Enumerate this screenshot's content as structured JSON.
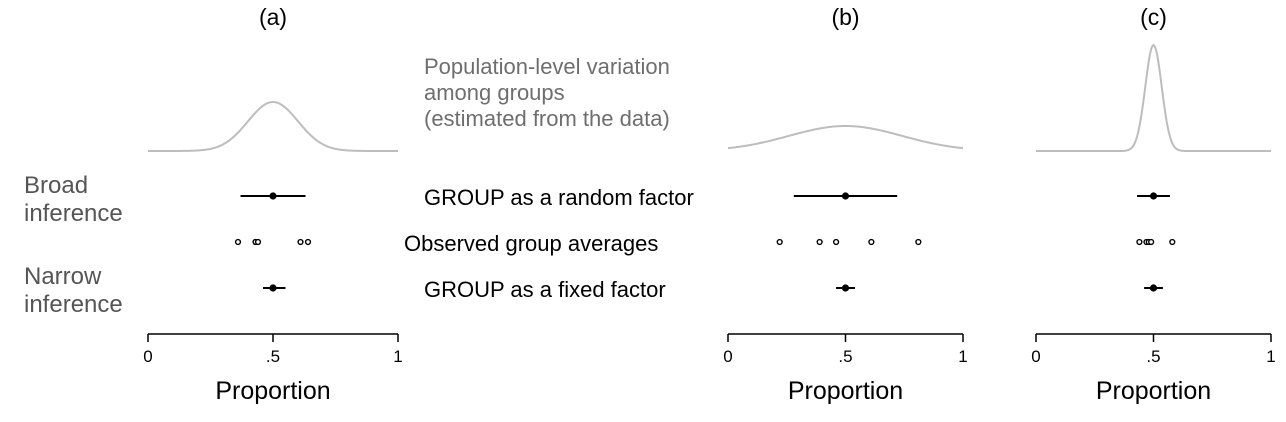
{
  "colors": {
    "density": "#bdbdbd",
    "estimate": "#000000",
    "row_label": "#555555",
    "population_label": "#6e6e6e"
  },
  "labels": {
    "broad": [
      "Broad",
      "inference"
    ],
    "narrow": [
      "Narrow",
      "inference"
    ],
    "population": [
      "Population-level variation",
      "among groups",
      "(estimated from the data)"
    ],
    "random_factor": "GROUP as a random factor",
    "observed": "Observed group averages",
    "fixed_factor": "GROUP as a fixed factor"
  },
  "chart_data": [
    {
      "title": "(a)",
      "type": "scatter",
      "xlabel": "Proportion",
      "xlim": [
        0,
        1
      ],
      "ticks": [
        0,
        0.5,
        1
      ],
      "tick_labels": [
        "0",
        ".5",
        "1"
      ],
      "population_density": {
        "mean": 0.5,
        "sd": 0.1
      },
      "random_factor": {
        "estimate": 0.5,
        "lower": 0.37,
        "upper": 0.63
      },
      "observed_group_averages": [
        0.36,
        0.43,
        0.44,
        0.61,
        0.64
      ],
      "fixed_factor": {
        "estimate": 0.5,
        "lower": 0.46,
        "upper": 0.55
      }
    },
    {
      "title": "(b)",
      "type": "scatter",
      "xlabel": "Proportion",
      "xlim": [
        0,
        1
      ],
      "ticks": [
        0,
        0.5,
        1
      ],
      "tick_labels": [
        "0",
        ".5",
        "1"
      ],
      "population_density": {
        "mean": 0.5,
        "sd": 0.24
      },
      "random_factor": {
        "estimate": 0.5,
        "lower": 0.28,
        "upper": 0.72
      },
      "observed_group_averages": [
        0.22,
        0.39,
        0.46,
        0.61,
        0.81
      ],
      "fixed_factor": {
        "estimate": 0.5,
        "lower": 0.46,
        "upper": 0.54
      }
    },
    {
      "title": "(c)",
      "type": "scatter",
      "xlabel": "Proportion",
      "xlim": [
        0,
        1
      ],
      "ticks": [
        0,
        0.5,
        1
      ],
      "tick_labels": [
        "0",
        ".5",
        "1"
      ],
      "population_density": {
        "mean": 0.5,
        "sd": 0.035
      },
      "random_factor": {
        "estimate": 0.5,
        "lower": 0.43,
        "upper": 0.57
      },
      "observed_group_averages": [
        0.44,
        0.47,
        0.48,
        0.49,
        0.58
      ],
      "fixed_factor": {
        "estimate": 0.5,
        "lower": 0.46,
        "upper": 0.54
      }
    }
  ]
}
